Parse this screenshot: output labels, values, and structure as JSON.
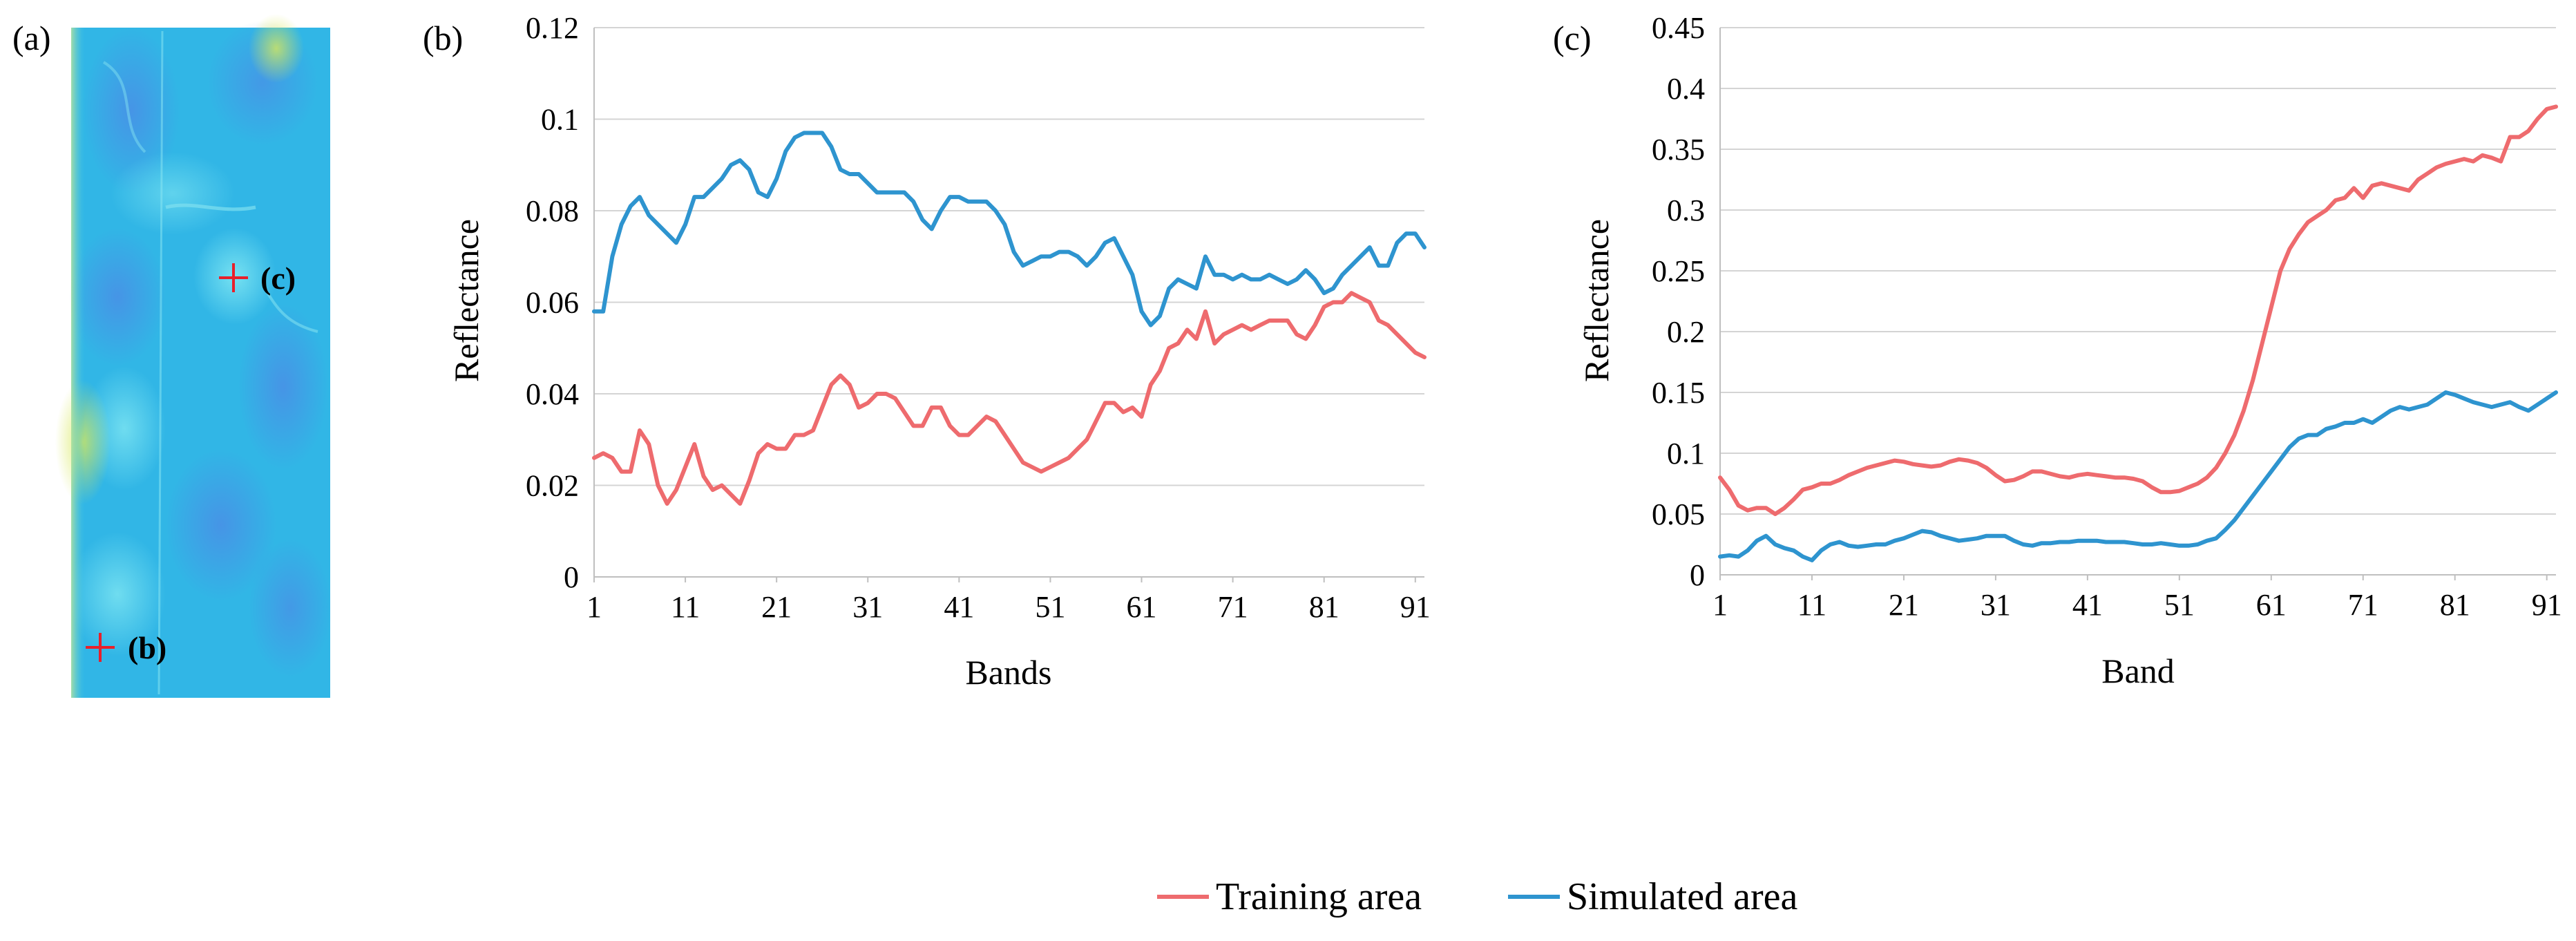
{
  "figure": {
    "panel_a": {
      "label": "(a)",
      "markers": [
        {
          "id": "b",
          "label": "(b)"
        },
        {
          "id": "c",
          "label": "(c)"
        }
      ]
    },
    "legend": [
      {
        "label": "Training area",
        "color": "#ee6b6e"
      },
      {
        "label": "Simulated area",
        "color": "#2e94cf"
      }
    ]
  },
  "chart_data": [
    {
      "panel": "(b)",
      "type": "line",
      "xlabel": "Bands",
      "ylabel": "Reflectance",
      "xlim": [
        1,
        92
      ],
      "ylim": [
        0,
        0.12
      ],
      "xticks": [
        1,
        11,
        21,
        31,
        41,
        51,
        61,
        71,
        81,
        91
      ],
      "yticks": [
        0,
        0.02,
        0.04,
        0.06,
        0.08,
        0.1,
        0.12
      ],
      "ytick_labels": [
        "0",
        "0.02",
        "0.04",
        "0.06",
        "0.08",
        "0.1",
        "0.12"
      ],
      "grid": true,
      "series": [
        {
          "name": "Training area",
          "color": "#ee6b6e",
          "x": [
            1,
            2,
            3,
            4,
            5,
            6,
            7,
            8,
            9,
            10,
            11,
            12,
            13,
            14,
            15,
            16,
            17,
            18,
            19,
            20,
            21,
            22,
            23,
            24,
            25,
            26,
            27,
            28,
            29,
            30,
            31,
            32,
            33,
            34,
            35,
            36,
            37,
            38,
            39,
            40,
            41,
            42,
            43,
            44,
            45,
            46,
            47,
            48,
            49,
            50,
            51,
            52,
            53,
            54,
            55,
            56,
            57,
            58,
            59,
            60,
            61,
            62,
            63,
            64,
            65,
            66,
            67,
            68,
            69,
            70,
            71,
            72,
            73,
            74,
            75,
            76,
            77,
            78,
            79,
            80,
            81,
            82,
            83,
            84,
            85,
            86,
            87,
            88,
            89,
            90,
            91,
            92
          ],
          "values": [
            0.026,
            0.027,
            0.026,
            0.023,
            0.023,
            0.032,
            0.029,
            0.02,
            0.016,
            0.019,
            0.024,
            0.029,
            0.022,
            0.019,
            0.02,
            0.018,
            0.016,
            0.021,
            0.027,
            0.029,
            0.028,
            0.028,
            0.031,
            0.031,
            0.032,
            0.037,
            0.042,
            0.044,
            0.042,
            0.037,
            0.038,
            0.04,
            0.04,
            0.039,
            0.036,
            0.033,
            0.033,
            0.037,
            0.037,
            0.033,
            0.031,
            0.031,
            0.033,
            0.035,
            0.034,
            0.031,
            0.028,
            0.025,
            0.024,
            0.023,
            0.024,
            0.025,
            0.026,
            0.028,
            0.03,
            0.034,
            0.038,
            0.038,
            0.036,
            0.037,
            0.035,
            0.042,
            0.045,
            0.05,
            0.051,
            0.054,
            0.052,
            0.058,
            0.051,
            0.053,
            0.054,
            0.055,
            0.054,
            0.055,
            0.056,
            0.056,
            0.056,
            0.053,
            0.052,
            0.055,
            0.059,
            0.06,
            0.06,
            0.062,
            0.061,
            0.06,
            0.056,
            0.055,
            0.053,
            0.051,
            0.049,
            0.048
          ]
        },
        {
          "name": "Simulated area",
          "color": "#2e94cf",
          "x": [
            1,
            2,
            3,
            4,
            5,
            6,
            7,
            8,
            9,
            10,
            11,
            12,
            13,
            14,
            15,
            16,
            17,
            18,
            19,
            20,
            21,
            22,
            23,
            24,
            25,
            26,
            27,
            28,
            29,
            30,
            31,
            32,
            33,
            34,
            35,
            36,
            37,
            38,
            39,
            40,
            41,
            42,
            43,
            44,
            45,
            46,
            47,
            48,
            49,
            50,
            51,
            52,
            53,
            54,
            55,
            56,
            57,
            58,
            59,
            60,
            61,
            62,
            63,
            64,
            65,
            66,
            67,
            68,
            69,
            70,
            71,
            72,
            73,
            74,
            75,
            76,
            77,
            78,
            79,
            80,
            81,
            82,
            83,
            84,
            85,
            86,
            87,
            88,
            89,
            90,
            91,
            92
          ],
          "values": [
            0.058,
            0.058,
            0.07,
            0.077,
            0.081,
            0.083,
            0.079,
            0.077,
            0.075,
            0.073,
            0.077,
            0.083,
            0.083,
            0.085,
            0.087,
            0.09,
            0.091,
            0.089,
            0.084,
            0.083,
            0.087,
            0.093,
            0.096,
            0.097,
            0.097,
            0.097,
            0.094,
            0.089,
            0.088,
            0.088,
            0.086,
            0.084,
            0.084,
            0.084,
            0.084,
            0.082,
            0.078,
            0.076,
            0.08,
            0.083,
            0.083,
            0.082,
            0.082,
            0.082,
            0.08,
            0.077,
            0.071,
            0.068,
            0.069,
            0.07,
            0.07,
            0.071,
            0.071,
            0.07,
            0.068,
            0.07,
            0.073,
            0.074,
            0.07,
            0.066,
            0.058,
            0.055,
            0.057,
            0.063,
            0.065,
            0.064,
            0.063,
            0.07,
            0.066,
            0.066,
            0.065,
            0.066,
            0.065,
            0.065,
            0.066,
            0.065,
            0.064,
            0.065,
            0.067,
            0.065,
            0.062,
            0.063,
            0.066,
            0.068,
            0.07,
            0.072,
            0.068,
            0.068,
            0.073,
            0.075,
            0.075,
            0.072
          ]
        }
      ]
    },
    {
      "panel": "(c)",
      "type": "line",
      "xlabel": "Band",
      "ylabel": "Reflectance",
      "xlim": [
        1,
        92
      ],
      "ylim": [
        0,
        0.45
      ],
      "xticks": [
        1,
        11,
        21,
        31,
        41,
        51,
        61,
        71,
        81,
        91
      ],
      "yticks": [
        0,
        0.05,
        0.1,
        0.15,
        0.2,
        0.25,
        0.3,
        0.35,
        0.4,
        0.45
      ],
      "ytick_labels": [
        "0",
        "0.05",
        "0.1",
        "0.15",
        "0.2",
        "0.25",
        "0.3",
        "0.35",
        "0.4",
        "0.45"
      ],
      "grid": true,
      "series": [
        {
          "name": "Training area",
          "color": "#ee6b6e",
          "x": [
            1,
            2,
            3,
            4,
            5,
            6,
            7,
            8,
            9,
            10,
            11,
            12,
            13,
            14,
            15,
            16,
            17,
            18,
            19,
            20,
            21,
            22,
            23,
            24,
            25,
            26,
            27,
            28,
            29,
            30,
            31,
            32,
            33,
            34,
            35,
            36,
            37,
            38,
            39,
            40,
            41,
            42,
            43,
            44,
            45,
            46,
            47,
            48,
            49,
            50,
            51,
            52,
            53,
            54,
            55,
            56,
            57,
            58,
            59,
            60,
            61,
            62,
            63,
            64,
            65,
            66,
            67,
            68,
            69,
            70,
            71,
            72,
            73,
            74,
            75,
            76,
            77,
            78,
            79,
            80,
            81,
            82,
            83,
            84,
            85,
            86,
            87,
            88,
            89,
            90,
            91,
            92
          ],
          "values": [
            0.08,
            0.07,
            0.057,
            0.053,
            0.055,
            0.055,
            0.05,
            0.055,
            0.062,
            0.07,
            0.072,
            0.075,
            0.075,
            0.078,
            0.082,
            0.085,
            0.088,
            0.09,
            0.092,
            0.094,
            0.093,
            0.091,
            0.09,
            0.089,
            0.09,
            0.093,
            0.095,
            0.094,
            0.092,
            0.088,
            0.082,
            0.077,
            0.078,
            0.081,
            0.085,
            0.085,
            0.083,
            0.081,
            0.08,
            0.082,
            0.083,
            0.082,
            0.081,
            0.08,
            0.08,
            0.079,
            0.077,
            0.072,
            0.068,
            0.068,
            0.069,
            0.072,
            0.075,
            0.08,
            0.088,
            0.1,
            0.115,
            0.135,
            0.16,
            0.19,
            0.22,
            0.25,
            0.268,
            0.28,
            0.29,
            0.295,
            0.3,
            0.308,
            0.31,
            0.318,
            0.31,
            0.32,
            0.322,
            0.32,
            0.318,
            0.316,
            0.325,
            0.33,
            0.335,
            0.338,
            0.34,
            0.342,
            0.34,
            0.345,
            0.343,
            0.34,
            0.36,
            0.36,
            0.365,
            0.375,
            0.383,
            0.385
          ]
        },
        {
          "name": "Simulated area",
          "color": "#2e94cf",
          "x": [
            1,
            2,
            3,
            4,
            5,
            6,
            7,
            8,
            9,
            10,
            11,
            12,
            13,
            14,
            15,
            16,
            17,
            18,
            19,
            20,
            21,
            22,
            23,
            24,
            25,
            26,
            27,
            28,
            29,
            30,
            31,
            32,
            33,
            34,
            35,
            36,
            37,
            38,
            39,
            40,
            41,
            42,
            43,
            44,
            45,
            46,
            47,
            48,
            49,
            50,
            51,
            52,
            53,
            54,
            55,
            56,
            57,
            58,
            59,
            60,
            61,
            62,
            63,
            64,
            65,
            66,
            67,
            68,
            69,
            70,
            71,
            72,
            73,
            74,
            75,
            76,
            77,
            78,
            79,
            80,
            81,
            82,
            83,
            84,
            85,
            86,
            87,
            88,
            89,
            90,
            91,
            92
          ],
          "values": [
            0.015,
            0.016,
            0.015,
            0.02,
            0.028,
            0.032,
            0.025,
            0.022,
            0.02,
            0.015,
            0.012,
            0.02,
            0.025,
            0.027,
            0.024,
            0.023,
            0.024,
            0.025,
            0.025,
            0.028,
            0.03,
            0.033,
            0.036,
            0.035,
            0.032,
            0.03,
            0.028,
            0.029,
            0.03,
            0.032,
            0.032,
            0.032,
            0.028,
            0.025,
            0.024,
            0.026,
            0.026,
            0.027,
            0.027,
            0.028,
            0.028,
            0.028,
            0.027,
            0.027,
            0.027,
            0.026,
            0.025,
            0.025,
            0.026,
            0.025,
            0.024,
            0.024,
            0.025,
            0.028,
            0.03,
            0.037,
            0.045,
            0.055,
            0.065,
            0.075,
            0.085,
            0.095,
            0.105,
            0.112,
            0.115,
            0.115,
            0.12,
            0.122,
            0.125,
            0.125,
            0.128,
            0.125,
            0.13,
            0.135,
            0.138,
            0.136,
            0.138,
            0.14,
            0.145,
            0.15,
            0.148,
            0.145,
            0.142,
            0.14,
            0.138,
            0.14,
            0.142,
            0.138,
            0.135,
            0.14,
            0.145,
            0.15
          ]
        }
      ]
    }
  ]
}
